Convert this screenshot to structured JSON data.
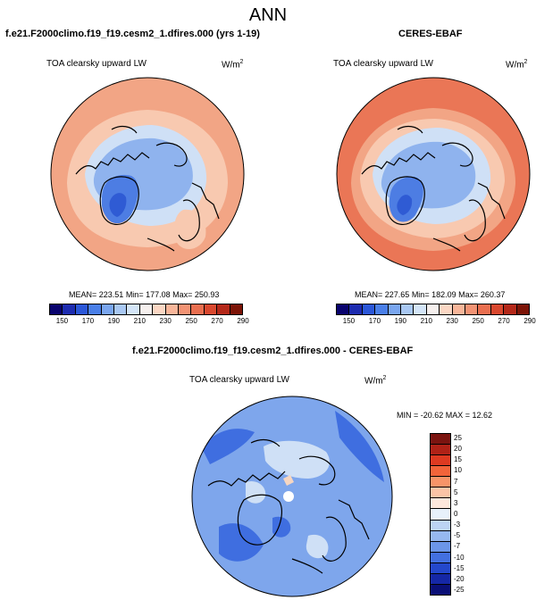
{
  "title": "ANN",
  "panels": [
    {
      "title": "f.e21.F2000climo.f19_f19.cesm2_1.dfires.000 (yrs 1-19)",
      "variable": "TOA clearsky upward LW",
      "units_base": "W/m",
      "units_exp": "2",
      "mean_text": "MEAN= 223.51",
      "min_text": "Min= 177.08",
      "max_text": "Max= 250.93"
    },
    {
      "title": "CERES-EBAF",
      "variable": "TOA clearsky upward LW",
      "units_base": "W/m",
      "units_exp": "2",
      "mean_text": "MEAN= 227.65",
      "min_text": "Min= 182.09",
      "max_text": "Max= 260.37"
    },
    {
      "title": "f.e21.F2000climo.f19_f19.cesm2_1.dfires.000 - CERES-EBAF",
      "variable": "TOA clearsky upward LW",
      "units_base": "W/m",
      "units_exp": "2",
      "minmax_text": "MIN = -20.62  MAX =  12.62"
    }
  ],
  "colorbar_abs": {
    "colors": [
      "#09036e",
      "#1d2cb0",
      "#2b57d8",
      "#4a7fe8",
      "#7aa6ef",
      "#a9c8f3",
      "#d4e5f8",
      "#f6f0ee",
      "#fbd7c4",
      "#f8b69a",
      "#f29374",
      "#e96f50",
      "#d9482f",
      "#b42819",
      "#7c1407"
    ],
    "ticks": [
      "150",
      "170",
      "190",
      "210",
      "230",
      "250",
      "270",
      "290"
    ]
  },
  "colorbar_diff": {
    "colors": [
      "#7b1410",
      "#b02217",
      "#de3a21",
      "#f2643a",
      "#f79468",
      "#fbc4a6",
      "#fde7dc",
      "#e8f1fb",
      "#bcd4f4",
      "#96b8ef",
      "#6c96e8",
      "#4370e0",
      "#2448cc",
      "#1527a6",
      "#0a0f76"
    ],
    "ticks": [
      "25",
      "20",
      "15",
      "10",
      "7",
      "5",
      "3",
      "0",
      "-3",
      "-5",
      "-7",
      "-10",
      "-15",
      "-20",
      "-25"
    ]
  },
  "map_colors": {
    "warm_outer": "#f2a585",
    "warm_mid": "#f8c9b0",
    "cool_light": "#cfe0f6",
    "cool_mid": "#8fb3ee",
    "cool_deep": "#4d7de3",
    "cool_deepest": "#2f5bd4",
    "diff_bg": "#7ea6ec",
    "diff_light": "#cfe0f6",
    "diff_dark": "#3f6ee0"
  }
}
